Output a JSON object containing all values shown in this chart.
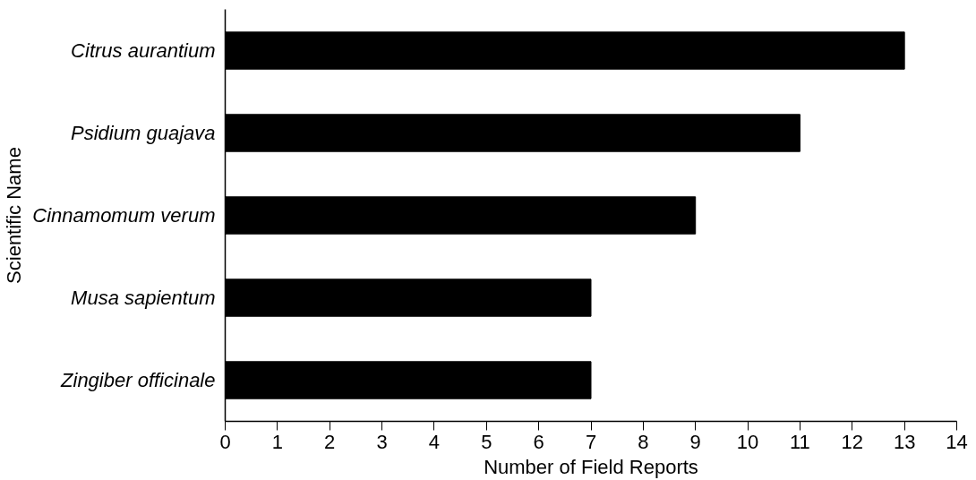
{
  "chart_data": {
    "type": "bar",
    "orientation": "horizontal",
    "xlabel": "Number of Field Reports",
    "ylabel": "Scientific Name",
    "categories": [
      "Citrus aurantium",
      "Psidium guajava",
      "Cinnamomum verum",
      "Musa sapientum",
      "Zingiber officinale"
    ],
    "values": [
      13,
      11,
      9,
      7,
      7
    ],
    "color": "#000000",
    "xlim": [
      0,
      14
    ],
    "xticks": [
      0,
      1,
      2,
      3,
      4,
      5,
      6,
      7,
      8,
      9,
      10,
      11,
      12,
      13,
      14
    ],
    "grid": false
  }
}
